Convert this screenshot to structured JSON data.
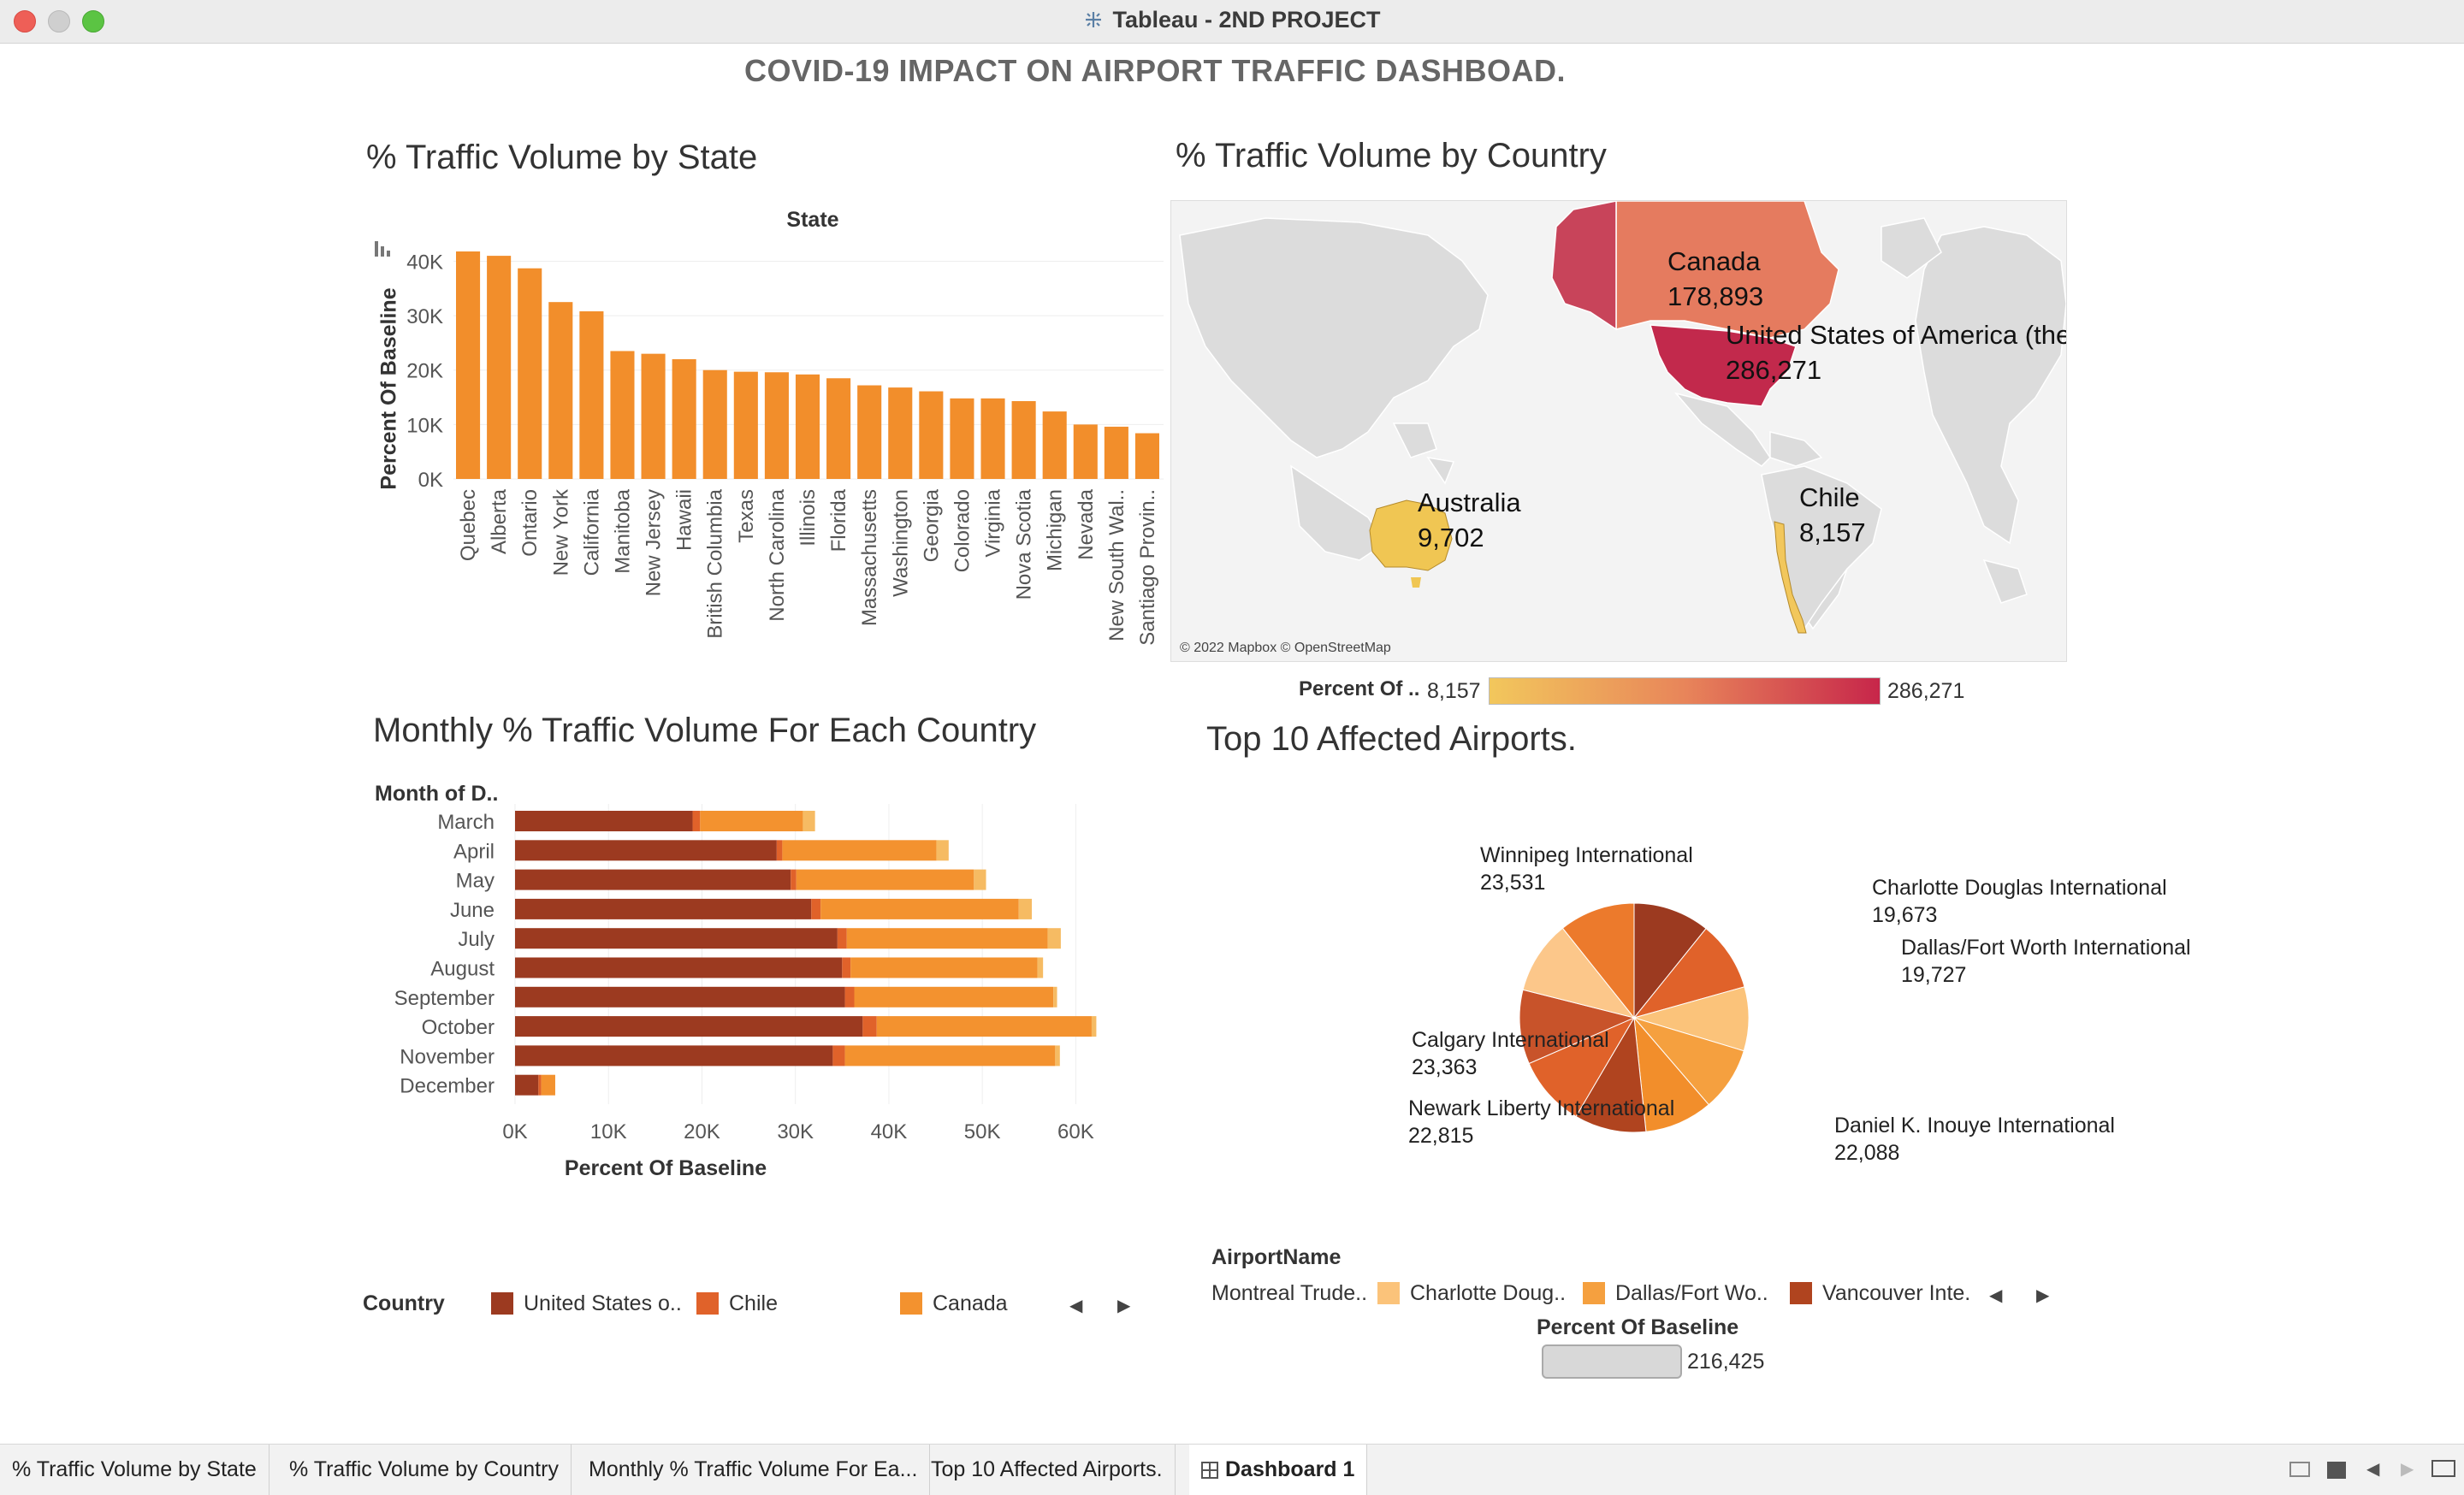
{
  "window": {
    "title": "Tableau - 2ND PROJECT"
  },
  "dashboard": {
    "title": "COVID-19 IMPACT ON AIRPORT TRAFFIC DASHBOAD."
  },
  "colors": {
    "us": "#9c3a20",
    "chile": "#e0622a",
    "canada": "#f3922f",
    "australia": "#f6bb63",
    "state_bar": "#f28e2b"
  },
  "state_chart": {
    "title": "%  Traffic Volume by State",
    "header": "State",
    "ylabel": "Percent Of Baseline"
  },
  "country_map": {
    "title": "% Traffic Volume by Country",
    "credit": "© 2022 Mapbox © OpenStreetMap",
    "labels": [
      {
        "name": "Canada",
        "value": "178,893"
      },
      {
        "name": "United States of America (the)",
        "value": "286,271"
      },
      {
        "name": "Australia",
        "value": "9,702"
      },
      {
        "name": "Chile",
        "value": "8,157"
      }
    ],
    "legend": {
      "title": "Percent Of ..",
      "min": "8,157",
      "max": "286,271"
    }
  },
  "monthly_chart": {
    "title": "Monthly % Traffic Volume For Each Country",
    "header": "Month of D..",
    "xlabel": "Percent Of Baseline"
  },
  "country_legend": {
    "title": "Country",
    "items": [
      "United States o..",
      "Chile",
      "Canada"
    ]
  },
  "airports_chart": {
    "title": "Top 10 Affected Airports.",
    "labels": [
      {
        "name": "Winnipeg International",
        "value": "23,531"
      },
      {
        "name": "Charlotte Douglas International",
        "value": "19,673"
      },
      {
        "name": "Dallas/Fort Worth International",
        "value": "19,727"
      },
      {
        "name": "Calgary International",
        "value": "23,363"
      },
      {
        "name": "Newark Liberty International",
        "value": "22,815"
      },
      {
        "name": "Daniel K. Inouye International",
        "value": "22,088"
      }
    ],
    "legend_title": "AirportName",
    "legend_items": [
      "Montreal Trude..",
      "Charlotte Doug..",
      "Dallas/Fort Wo..",
      "Vancouver Inte."
    ],
    "size_legend_title": "Percent Of Baseline",
    "size_legend_value": "216,425"
  },
  "tabs": [
    {
      "label": "%  Traffic Volume by State"
    },
    {
      "label": "% Traffic Volume by Country"
    },
    {
      "label": "Monthly % Traffic Volume For Ea..."
    },
    {
      "label": "Top 10 Affected Airports."
    },
    {
      "label": "Dashboard 1"
    }
  ],
  "chart_data": [
    {
      "type": "bar",
      "title": "%  Traffic Volume by State",
      "xlabel": "State",
      "ylabel": "Percent Of Baseline",
      "ylim": [
        0,
        44000
      ],
      "yticks": [
        "0K",
        "10K",
        "20K",
        "30K",
        "40K"
      ],
      "categories": [
        "Quebec",
        "Alberta",
        "Ontario",
        "New York",
        "California",
        "Manitoba",
        "New Jersey",
        "Hawaii",
        "British Columbia",
        "Texas",
        "North Carolina",
        "Illinois",
        "Florida",
        "Massachusetts",
        "Washington",
        "Georgia",
        "Colorado",
        "Virginia",
        "Nova Scotia",
        "Michigan",
        "Nevada",
        "New South Wal..",
        "Santiago Provin.."
      ],
      "values": [
        41800,
        41000,
        38700,
        32500,
        30800,
        23500,
        23000,
        22000,
        20000,
        19700,
        19600,
        19200,
        18500,
        17200,
        16800,
        16100,
        14800,
        14800,
        14300,
        12400,
        10000,
        9600,
        8400
      ]
    },
    {
      "type": "bar",
      "orientation": "horizontal",
      "stacked": true,
      "title": "Monthly % Traffic Volume For Each Country",
      "ylabel": "Month of D..",
      "xlabel": "Percent Of Baseline",
      "xlim": [
        0,
        65000
      ],
      "xticks": [
        "0K",
        "10K",
        "20K",
        "30K",
        "40K",
        "50K",
        "60K"
      ],
      "categories": [
        "March",
        "April",
        "May",
        "June",
        "July",
        "August",
        "September",
        "October",
        "November",
        "December"
      ],
      "series": [
        {
          "name": "United States o..",
          "values": [
            19000,
            28000,
            29500,
            31700,
            34500,
            35000,
            35300,
            37200,
            34000,
            2500
          ]
        },
        {
          "name": "Chile",
          "values": [
            800,
            600,
            600,
            1000,
            1000,
            900,
            1000,
            1500,
            1300,
            300
          ]
        },
        {
          "name": "Canada",
          "values": [
            11000,
            16500,
            19000,
            21200,
            21500,
            20000,
            21300,
            23000,
            22500,
            1500
          ]
        },
        {
          "values": [
            1300,
            1300,
            1300,
            1400,
            1400,
            600,
            400,
            500,
            500,
            0
          ]
        }
      ]
    },
    {
      "type": "pie",
      "title": "Top 10 Affected Airports.",
      "slices": [
        {
          "label": "Winnipeg International",
          "value": 23531
        },
        {
          "label": "",
          "value": 21500
        },
        {
          "label": "Charlotte Douglas International",
          "value": 19673
        },
        {
          "label": "Dallas/Fort Worth International",
          "value": 19727
        },
        {
          "label": "",
          "value": 21000
        },
        {
          "label": "Daniel K. Inouye International",
          "value": 22088
        },
        {
          "label": "",
          "value": 21800
        },
        {
          "label": "Newark Liberty International",
          "value": 22815
        },
        {
          "label": "",
          "value": 22600
        },
        {
          "label": "Calgary International",
          "value": 23363
        }
      ]
    }
  ]
}
